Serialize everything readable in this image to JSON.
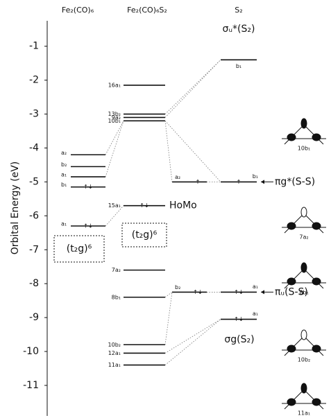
{
  "chart_data": {
    "type": "energy-level",
    "ylabel": "Orbital Energy (eV)",
    "ylim": [
      -11.9,
      -0.25
    ],
    "yticks": [
      -1,
      -2,
      -3,
      -4,
      -5,
      -6,
      -7,
      -8,
      -9,
      -10,
      -11
    ],
    "color": "#111111",
    "columns": [
      {
        "name": "Fe₂(CO)₆",
        "labels": [
          "a₂",
          "b₂",
          "a₁",
          "b₁",
          "a₁"
        ],
        "values": [
          -4.2,
          -4.55,
          -4.85,
          -5.15,
          -6.3
        ],
        "electrons": [
          null,
          null,
          null,
          "↑↓",
          "↑↓"
        ]
      },
      {
        "name": "Fe₂(CO)₆S₂",
        "labels": [
          "16a₁",
          "13b₂",
          "9a₂",
          "10b₁",
          "15a₁",
          "7a₂",
          "8b₁",
          "10b₂",
          "12a₁",
          "11a₁"
        ],
        "values": [
          -2.15,
          -3.0,
          -3.1,
          -3.2,
          -5.7,
          -7.6,
          -8.4,
          -9.8,
          -10.05,
          -10.4
        ],
        "electrons": [
          null,
          null,
          null,
          null,
          "↑↓",
          null,
          null,
          null,
          null,
          null
        ]
      },
      {
        "name": null,
        "labels": [
          "a₂",
          "b₂"
        ],
        "values": [
          -5.0,
          -8.25
        ],
        "electrons": [
          "↑",
          "↑↓"
        ]
      },
      {
        "name": "S₂",
        "labels": [
          "b₁",
          "b₁",
          "a₁",
          "a₁"
        ],
        "values": [
          -1.4,
          -5.0,
          -8.25,
          -9.05
        ],
        "electrons": [
          null,
          "↑",
          "↑↓",
          "↑↓"
        ]
      }
    ],
    "annotations": {
      "homo": "HoMo",
      "t2g_left": "(t₂g)⁶",
      "t2g_mid": "(t₂g)⁶",
      "sigma_u": "σᵤ*(S₂)",
      "pi_g": "πg*(S-S)",
      "pi_u": "πᵤ(S-S)",
      "sigma_g": "σg(S₂)"
    },
    "orbital_sketches": [
      "10b₁",
      "7a₂",
      "8b₁",
      "10b₂",
      "11a₁"
    ]
  }
}
